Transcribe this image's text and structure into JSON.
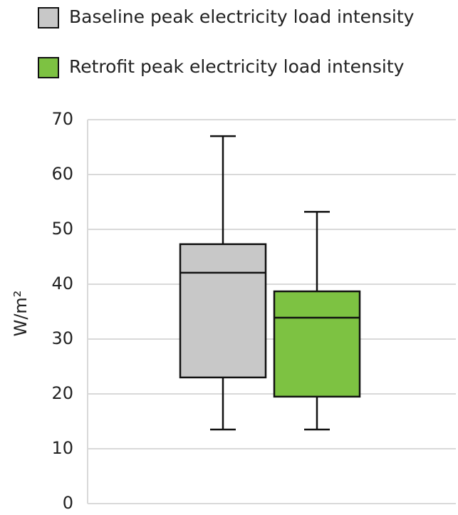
{
  "chart_data": {
    "type": "box",
    "y_label": "W/m²",
    "ylim": [
      0,
      70
    ],
    "yticks": [
      0,
      10,
      20,
      30,
      40,
      50,
      60,
      70
    ],
    "grid": true,
    "series": [
      {
        "name": "Baseline peak electricity load intensity",
        "color": "#c8c8c8",
        "min": 13.5,
        "q1": 23,
        "median": 42.1,
        "q3": 47.3,
        "max": 67
      },
      {
        "name": "Retrofit peak electricity load intensity",
        "color": "#7dc242",
        "min": 13.5,
        "q1": 19.5,
        "median": 33.9,
        "q3": 38.7,
        "max": 53.2
      }
    ]
  }
}
